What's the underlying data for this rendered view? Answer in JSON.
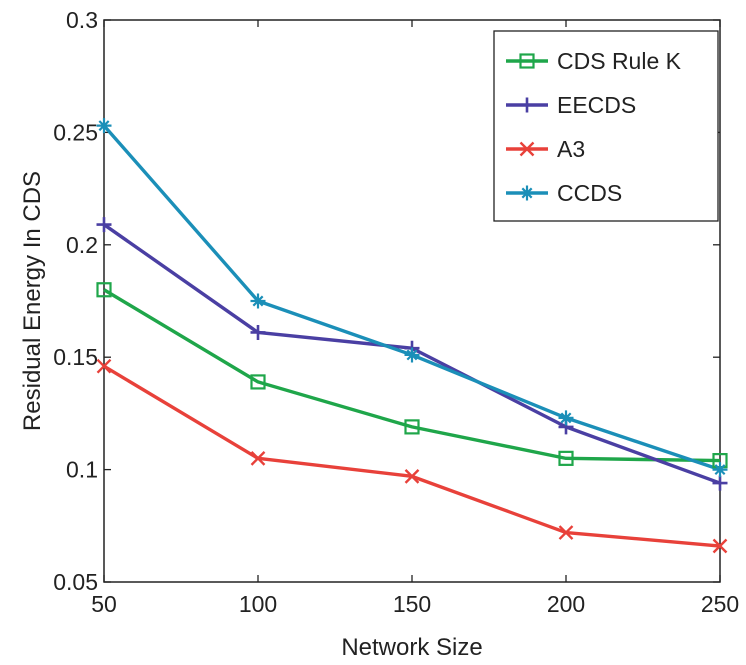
{
  "chart_data": {
    "type": "line",
    "xlabel": "Network Size",
    "ylabel": "Residual Energy In CDS",
    "x": [
      50,
      100,
      150,
      200,
      250
    ],
    "xlim": [
      50,
      250
    ],
    "ylim": [
      0.05,
      0.3
    ],
    "xticks": [
      "50",
      "100",
      "150",
      "200",
      "250"
    ],
    "yticks": [
      "0.05",
      "0.1",
      "0.15",
      "0.2",
      "0.25",
      "0.3"
    ],
    "grid": false,
    "legend_position": "top-right",
    "series": [
      {
        "name": "CDS Rule K",
        "color": "#1fa64a",
        "marker": "square",
        "values": [
          0.18,
          0.139,
          0.119,
          0.105,
          0.104
        ]
      },
      {
        "name": "EECDS",
        "color": "#4a3fa3",
        "marker": "plus",
        "values": [
          0.209,
          0.161,
          0.154,
          0.119,
          0.094
        ]
      },
      {
        "name": "A3",
        "color": "#e8413a",
        "marker": "x",
        "values": [
          0.146,
          0.105,
          0.097,
          0.072,
          0.066
        ]
      },
      {
        "name": "CCDS",
        "color": "#1b8fb8",
        "marker": "star",
        "values": [
          0.253,
          0.175,
          0.151,
          0.123,
          0.1
        ]
      }
    ]
  }
}
